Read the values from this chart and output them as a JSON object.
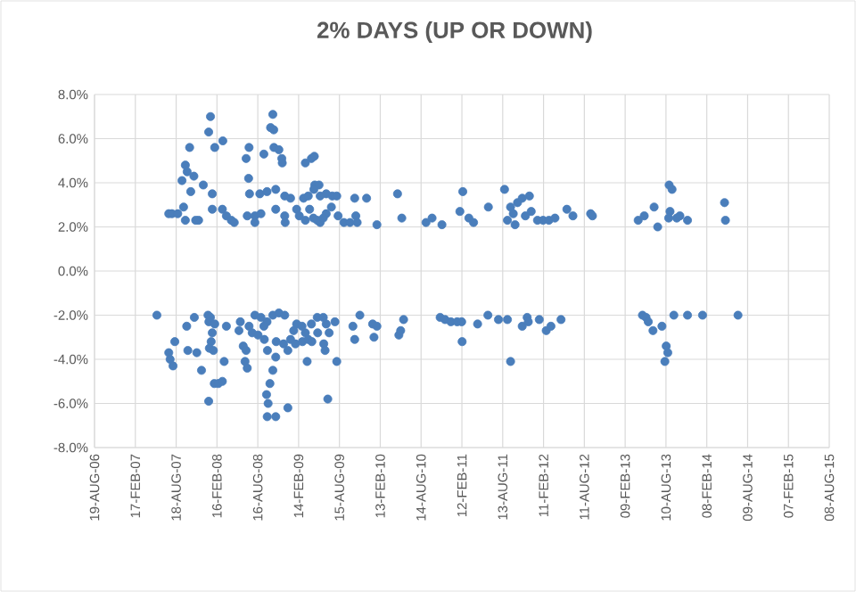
{
  "chart_data": {
    "type": "scatter",
    "title": "2% DAYS (UP OR DOWN)",
    "color": "#4a7ebb",
    "marker": "circle",
    "grid": true,
    "xlim": [
      "2006-08-19",
      "2015-08-08"
    ],
    "xticks": [
      {
        "value": "2006-08-19",
        "label": "19-AUG-06"
      },
      {
        "value": "2007-02-17",
        "label": "17-FEB-07"
      },
      {
        "value": "2007-08-18",
        "label": "18-AUG-07"
      },
      {
        "value": "2008-02-16",
        "label": "16-FEB-08"
      },
      {
        "value": "2008-08-16",
        "label": "16-AUG-08"
      },
      {
        "value": "2009-02-14",
        "label": "14-FEB-09"
      },
      {
        "value": "2009-08-15",
        "label": "15-AUG-09"
      },
      {
        "value": "2010-02-13",
        "label": "13-FEB-10"
      },
      {
        "value": "2010-08-14",
        "label": "14-AUG-10"
      },
      {
        "value": "2011-02-12",
        "label": "12-FEB-11"
      },
      {
        "value": "2011-08-13",
        "label": "13-AUG-11"
      },
      {
        "value": "2012-02-11",
        "label": "11-FEB-12"
      },
      {
        "value": "2012-08-11",
        "label": "11-AUG-12"
      },
      {
        "value": "2013-02-09",
        "label": "09-FEB-13"
      },
      {
        "value": "2013-08-10",
        "label": "10-AUG-13"
      },
      {
        "value": "2014-02-08",
        "label": "08-FEB-14"
      },
      {
        "value": "2014-08-09",
        "label": "09-AUG-14"
      },
      {
        "value": "2015-02-07",
        "label": "07-FEB-15"
      },
      {
        "value": "2015-08-08",
        "label": "08-AUG-15"
      }
    ],
    "ylim": [
      -8,
      8
    ],
    "yticks": [
      {
        "value": -8,
        "label": "-8.0%"
      },
      {
        "value": -6,
        "label": "-6.0%"
      },
      {
        "value": -4,
        "label": "-4.0%"
      },
      {
        "value": -2,
        "label": "-2.0%"
      },
      {
        "value": 0,
        "label": "0.0%"
      },
      {
        "value": 2,
        "label": "2.0%"
      },
      {
        "value": 4,
        "label": "4.0%"
      },
      {
        "value": 6,
        "label": "6.0%"
      },
      {
        "value": 8,
        "label": "8.0%"
      }
    ],
    "x": [
      "2007-07-16",
      "2007-07-30",
      "2007-08-25",
      "2007-09-13",
      "2007-09-20",
      "2007-09-28",
      "2007-10-06",
      "2007-10-17",
      "2007-10-22",
      "2007-11-05",
      "2007-09-28",
      "2007-11-26",
      "2007-11-13",
      "2007-12-17",
      "2008-01-10",
      "2008-01-18",
      "2008-01-26",
      "2008-01-26",
      "2008-02-06",
      "2008-03-13",
      "2008-03-11",
      "2008-03-29",
      "2008-04-20",
      "2008-05-03",
      "2008-06-25",
      "2008-07-08",
      "2008-07-06",
      "2008-07-10",
      "2008-06-30",
      "2008-08-03",
      "2008-08-30",
      "2008-08-03",
      "2008-08-25",
      "2008-09-12",
      "2008-09-26",
      "2008-10-12",
      "2008-10-22",
      "2008-10-26",
      "2008-11-04",
      "2008-10-27",
      "2008-11-04",
      "2008-11-18",
      "2008-12-01",
      "2008-12-03",
      "2008-12-14",
      "2008-12-14",
      "2008-12-16",
      "2009-01-09",
      "2009-02-05",
      "2009-02-17",
      "2009-03-08",
      "2009-03-16",
      "2009-04-12",
      "2009-04-25",
      "2009-04-27",
      "2009-05-16",
      "2009-04-23",
      "2009-03-29",
      "2009-05-21",
      "2009-06-17",
      "2009-07-14",
      "2009-08-03",
      "2009-04-04",
      "2009-04-21",
      "2009-05-21",
      "2009-06-17",
      "2009-07-10",
      "2009-03-16",
      "2009-05-08",
      "2009-06-04",
      "2009-08-09",
      "2009-09-04",
      "2009-10-01",
      "2009-10-27",
      "2009-11-02",
      "2009-10-22",
      "2009-12-14",
      "2010-01-29",
      "2010-05-01",
      "2010-05-20",
      "2010-09-05",
      "2010-10-02",
      "2010-11-15",
      "2011-02-03",
      "2011-02-16",
      "2011-03-15",
      "2011-04-05",
      "2011-06-10",
      "2011-08-21",
      "2011-09-03",
      "2011-09-17",
      "2011-09-29",
      "2011-10-07",
      "2011-10-18",
      "2011-11-08",
      "2011-11-22",
      "2011-12-10",
      "2011-12-18",
      "2012-01-15",
      "2012-02-09",
      "2012-03-06",
      "2012-04-02",
      "2012-05-25",
      "2012-06-21",
      "2012-09-08",
      "2012-09-16",
      "2013-04-08",
      "2013-05-05",
      "2013-06-18",
      "2013-07-04",
      "2013-08-24",
      "2013-09-06",
      "2013-08-28",
      "2013-08-22",
      "2013-09-27",
      "2013-10-11",
      "2013-11-14",
      "2014-04-28",
      "2014-05-02",
      "2007-05-24",
      "2007-07-16",
      "2007-07-22",
      "2007-08-04",
      "2007-08-12",
      "2007-10-04",
      "2007-10-09",
      "2007-11-07",
      "2007-11-18",
      "2007-12-09",
      "2008-01-07",
      "2008-01-18",
      "2008-01-11",
      "2008-02-06",
      "2008-01-26",
      "2008-01-21",
      "2008-01-13",
      "2008-01-31",
      "2008-01-10",
      "2008-02-04",
      "2008-02-22",
      "2008-03-11",
      "2008-03-29",
      "2008-03-19",
      "2008-05-24",
      "2008-06-12",
      "2008-06-25",
      "2008-06-20",
      "2008-06-30",
      "2008-05-30",
      "2008-07-08",
      "2008-07-22",
      "2008-08-03",
      "2008-08-30",
      "2008-09-26",
      "2008-09-12",
      "2008-08-17",
      "2008-09-14",
      "2008-10-22",
      "2008-11-18",
      "2008-12-14",
      "2008-09-28",
      "2008-11-04",
      "2008-10-09",
      "2008-09-24",
      "2008-10-01",
      "2008-09-27",
      "2008-11-04",
      "2008-10-22",
      "2008-12-28",
      "2008-11-06",
      "2008-12-09",
      "2009-01-09",
      "2008-12-28",
      "2009-01-31",
      "2009-03-03",
      "2009-01-23",
      "2009-02-05",
      "2009-03-16",
      "2009-04-12",
      "2009-05-08",
      "2009-03-01",
      "2009-03-29",
      "2009-04-14",
      "2009-05-10",
      "2009-03-24",
      "2009-06-04",
      "2009-06-17",
      "2009-06-30",
      "2009-06-06",
      "2009-06-12",
      "2009-07-26",
      "2009-06-24",
      "2009-08-03",
      "2009-10-14",
      "2009-10-22",
      "2009-11-14",
      "2010-01-10",
      "2010-01-16",
      "2010-01-29",
      "2010-05-07",
      "2010-05-15",
      "2010-05-28",
      "2010-11-07",
      "2010-11-29",
      "2010-12-25",
      "2011-01-22",
      "2011-02-11",
      "2011-02-13",
      "2011-04-23",
      "2011-06-08",
      "2011-07-25",
      "2011-09-03",
      "2011-09-17",
      "2011-11-08",
      "2011-11-30",
      "2011-12-05",
      "2012-01-23",
      "2012-02-23",
      "2012-03-15",
      "2012-04-29",
      "2013-04-27",
      "2013-05-13",
      "2013-05-23",
      "2013-06-13",
      "2013-07-23",
      "2013-08-11",
      "2013-08-18",
      "2013-08-05",
      "2013-09-14",
      "2013-11-14",
      "2014-01-20",
      "2014-06-27"
    ],
    "values": [
      2.6,
      2.6,
      2.6,
      4.1,
      2.9,
      4.8,
      4.5,
      5.6,
      3.6,
      4.3,
      2.3,
      2.3,
      2.3,
      3.9,
      6.3,
      7.0,
      3.5,
      2.8,
      5.6,
      5.9,
      2.8,
      2.5,
      2.3,
      2.2,
      5.1,
      5.6,
      4.2,
      3.5,
      2.5,
      2.5,
      2.6,
      2.2,
      3.5,
      5.3,
      3.6,
      6.5,
      7.1,
      6.4,
      3.7,
      5.6,
      2.8,
      5.5,
      5.1,
      4.9,
      3.4,
      2.5,
      2.2,
      3.3,
      2.8,
      2.5,
      3.3,
      4.9,
      5.1,
      5.2,
      3.9,
      3.9,
      3.7,
      3.4,
      3.4,
      3.5,
      3.4,
      3.4,
      2.8,
      2.4,
      2.2,
      2.6,
      2.9,
      2.3,
      2.3,
      2.4,
      2.5,
      2.2,
      2.2,
      2.5,
      2.2,
      3.3,
      3.3,
      2.1,
      3.5,
      2.4,
      2.2,
      2.4,
      2.1,
      2.7,
      3.6,
      2.4,
      2.2,
      2.9,
      3.7,
      2.3,
      2.9,
      2.6,
      2.1,
      3.1,
      3.3,
      2.5,
      3.4,
      2.7,
      2.3,
      2.3,
      2.3,
      2.4,
      2.8,
      2.5,
      2.6,
      2.5,
      2.3,
      2.5,
      2.9,
      2.0,
      3.9,
      3.7,
      2.7,
      2.4,
      2.4,
      2.5,
      2.3,
      3.1,
      2.3,
      -2.0,
      -3.7,
      -4.0,
      -4.3,
      -3.2,
      -2.5,
      -3.6,
      -2.1,
      -3.7,
      -4.5,
      -2.0,
      -2.1,
      -2.3,
      -2.4,
      -2.8,
      -3.2,
      -3.5,
      -3.6,
      -5.9,
      -5.1,
      -5.1,
      -5.0,
      -2.5,
      -4.1,
      -2.7,
      -3.4,
      -3.6,
      -4.1,
      -4.4,
      -2.3,
      -2.5,
      -2.8,
      -2.0,
      -2.1,
      -2.3,
      -2.5,
      -2.9,
      -3.1,
      -2.0,
      -1.9,
      -2.0,
      -3.6,
      -3.9,
      -5.1,
      -5.6,
      -6.0,
      -6.6,
      -6.6,
      -4.5,
      -6.2,
      -3.2,
      -3.3,
      -3.1,
      -3.6,
      -3.3,
      -3.2,
      -2.7,
      -2.4,
      -2.8,
      -2.4,
      -2.1,
      -2.5,
      -3.1,
      -3.2,
      -2.8,
      -4.1,
      -2.1,
      -2.4,
      -2.8,
      -3.3,
      -3.6,
      -2.3,
      -5.8,
      -4.1,
      -2.5,
      -3.1,
      -2.0,
      -2.4,
      -3.0,
      -2.5,
      -2.9,
      -2.7,
      -2.2,
      -2.1,
      -2.2,
      -2.3,
      -2.3,
      -2.3,
      -3.2,
      -2.4,
      -2.0,
      -2.2,
      -2.2,
      -4.1,
      -2.5,
      -2.1,
      -2.3,
      -2.2,
      -2.7,
      -2.5,
      -2.2,
      -2.0,
      -2.1,
      -2.3,
      -2.7,
      -2.5,
      -3.4,
      -3.7,
      -4.1,
      -2.0,
      -2.0,
      -2.0,
      -2.0
    ]
  }
}
